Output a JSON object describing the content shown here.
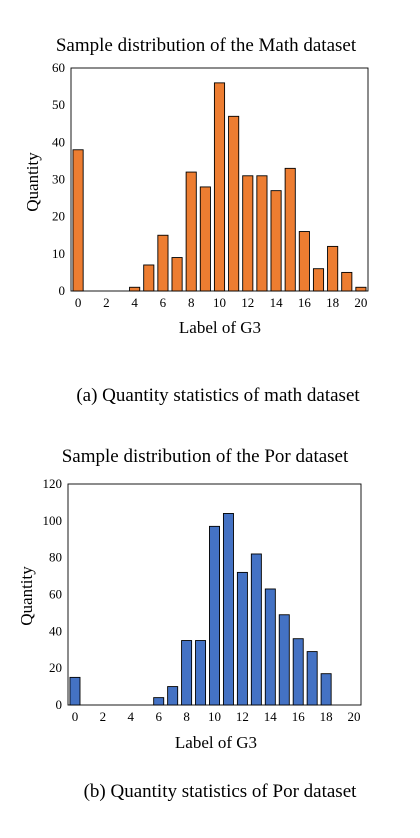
{
  "chart_data": [
    {
      "type": "bar",
      "title": "Sample distribution of the Math dataset",
      "xlabel": "Label of G3",
      "ylabel": "Quantity",
      "caption": "(a) Quantity statistics of math dataset",
      "categories": [
        "0",
        "1",
        "2",
        "3",
        "4",
        "5",
        "6",
        "7",
        "8",
        "9",
        "10",
        "11",
        "12",
        "13",
        "14",
        "15",
        "16",
        "17",
        "18",
        "19",
        "20"
      ],
      "x_tick_labels": [
        "0",
        "2",
        "4",
        "6",
        "8",
        "10",
        "12",
        "14",
        "16",
        "18",
        "20"
      ],
      "y_tick_labels": [
        "0",
        "10",
        "20",
        "30",
        "40",
        "50",
        "60"
      ],
      "values": [
        38,
        0,
        0,
        0,
        1,
        7,
        15,
        9,
        32,
        28,
        56,
        47,
        31,
        31,
        27,
        33,
        16,
        6,
        12,
        5,
        1
      ],
      "ylim": [
        0,
        60
      ],
      "bar_color": "#ED7D31",
      "grid": false,
      "legend": "none"
    },
    {
      "type": "bar",
      "title": "Sample distribution of the Por dataset",
      "xlabel": "Label of G3",
      "ylabel": "Quantity",
      "caption": "(b) Quantity statistics of Por dataset",
      "categories": [
        "0",
        "1",
        "2",
        "3",
        "4",
        "5",
        "6",
        "7",
        "8",
        "9",
        "10",
        "11",
        "12",
        "13",
        "14",
        "15",
        "16",
        "17",
        "18",
        "19",
        "20"
      ],
      "x_tick_labels": [
        "0",
        "2",
        "4",
        "6",
        "8",
        "10",
        "12",
        "14",
        "16",
        "18",
        "20"
      ],
      "y_tick_labels": [
        "0",
        "20",
        "40",
        "60",
        "80",
        "100",
        "120"
      ],
      "values": [
        15,
        0,
        0,
        0,
        0,
        0,
        4,
        10,
        35,
        35,
        97,
        104,
        72,
        82,
        63,
        49,
        36,
        29,
        17,
        0,
        0
      ],
      "ylim": [
        0,
        120
      ],
      "bar_color": "#4472C4",
      "grid": false,
      "legend": "none"
    }
  ]
}
